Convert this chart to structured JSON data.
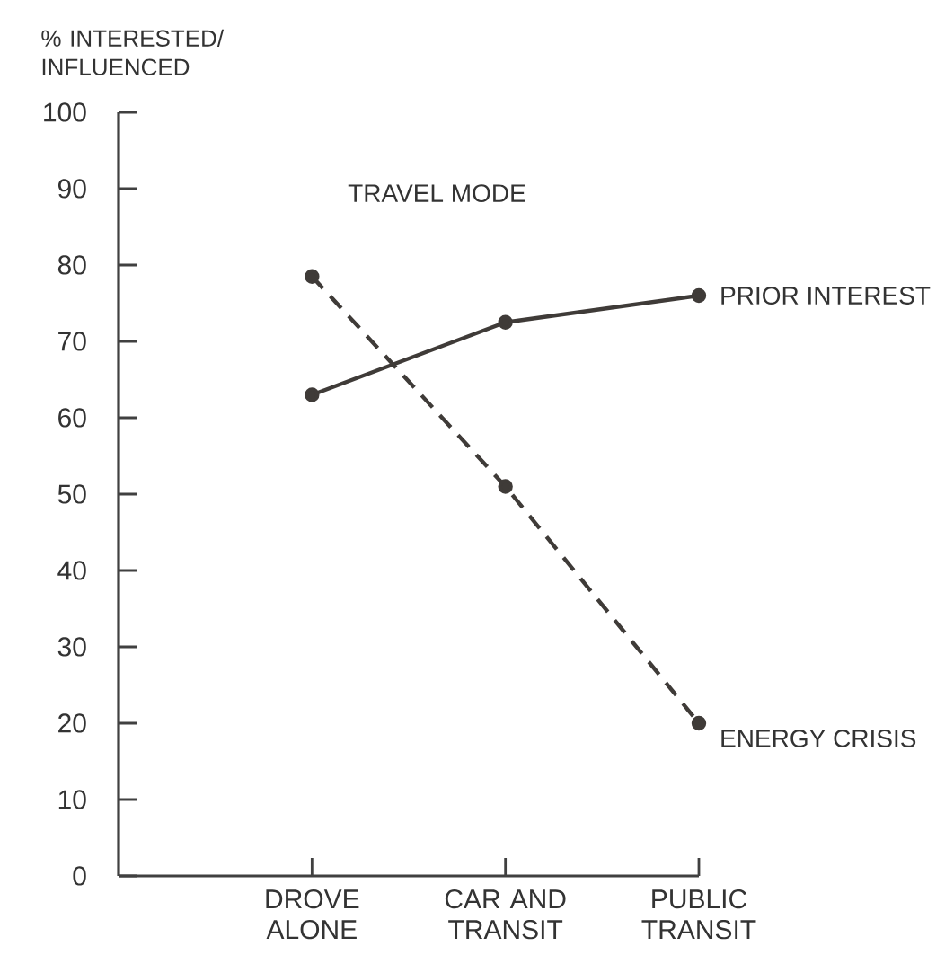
{
  "chart_data": {
    "type": "line",
    "ylabel": "% INTERESTED/ INFLUENCED",
    "annotations": [
      "TRAVEL MODE"
    ],
    "categories": [
      "DROVE ALONE",
      "CAR AND TRANSIT",
      "PUBLIC TRANSIT"
    ],
    "ylim": [
      0,
      100
    ],
    "yticks": [
      0,
      10,
      20,
      30,
      40,
      50,
      60,
      70,
      80,
      90,
      100
    ],
    "grid": false,
    "legend": false,
    "marker": "circle",
    "series": [
      {
        "name": "PRIOR INTEREST",
        "color": "#3f3b38",
        "line_style": "solid",
        "values": [
          63,
          72.5,
          76
        ]
      },
      {
        "name": "ENERGY CRISIS",
        "color": "#3f3b38",
        "line_style": "dashed",
        "values": [
          78.5,
          51,
          20
        ]
      }
    ]
  }
}
